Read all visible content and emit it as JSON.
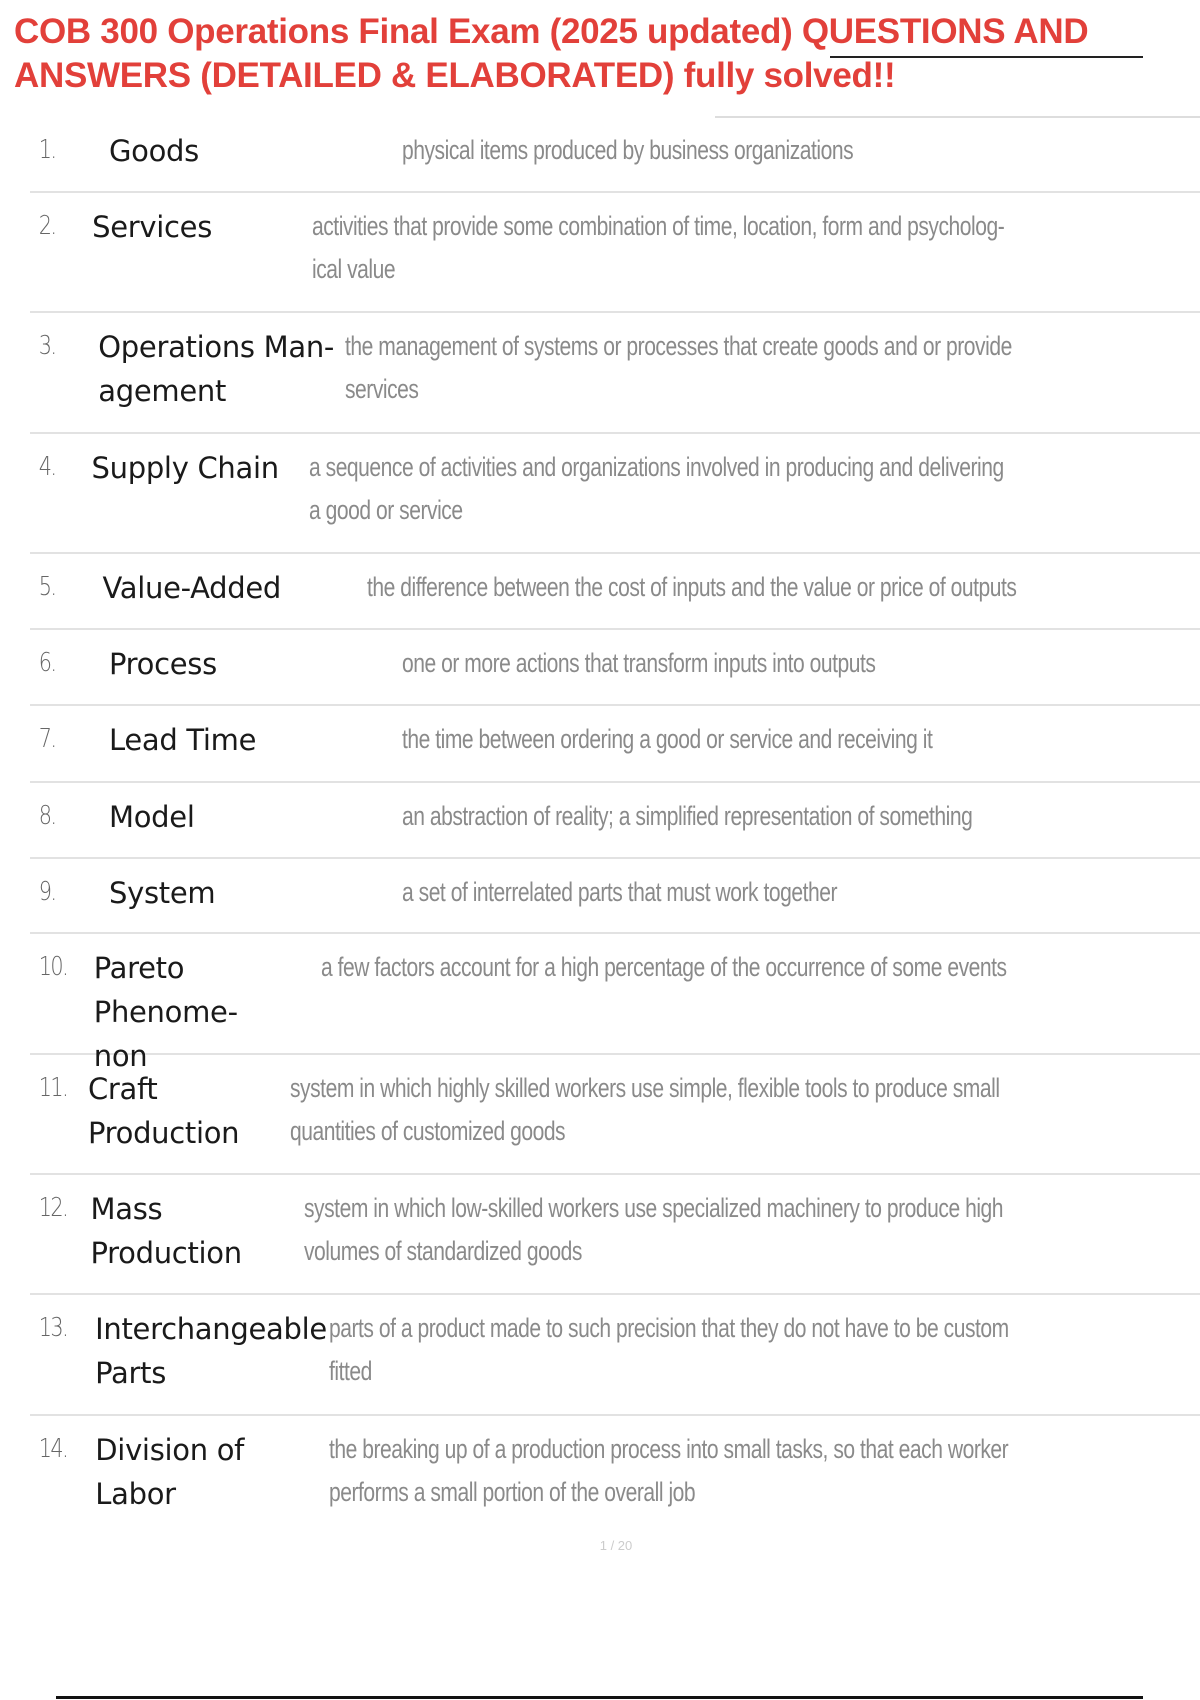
{
  "title": "COB 300 Operations Final Exam (2025 updated) QUESTIONS AND ANSWERS (DETAILED & ELABORATED) fully solved!!",
  "glossary": [
    {
      "num": "1.",
      "term": [
        "Goods"
      ],
      "def": [
        "physical items produced by business organizations"
      ]
    },
    {
      "num": "2.",
      "term": [
        "Services"
      ],
      "def": [
        "activities that provide some combination of time, location, form and psycholog-",
        "ical value"
      ]
    },
    {
      "num": "3.",
      "term": [
        "Operations Man-",
        "agement"
      ],
      "def": [
        "the management of systems or processes that create goods and or provide",
        "services"
      ]
    },
    {
      "num": "4.",
      "term": [
        "Supply Chain"
      ],
      "def": [
        "a sequence of activities and organizations involved in producing and delivering",
        "a good or service"
      ]
    },
    {
      "num": "5.",
      "term": [
        "Value-Added"
      ],
      "def": [
        "the difference between the cost of inputs and the value or price of outputs"
      ]
    },
    {
      "num": "6.",
      "term": [
        "Process"
      ],
      "def": [
        "one or more actions that transform inputs into outputs"
      ]
    },
    {
      "num": "7.",
      "term": [
        "Lead Time"
      ],
      "def": [
        "the time between ordering a good or service and receiving it"
      ]
    },
    {
      "num": "8.",
      "term": [
        "Model"
      ],
      "def": [
        "an abstraction of reality; a simplified representation of something"
      ]
    },
    {
      "num": "9.",
      "term": [
        "System"
      ],
      "def": [
        "a set of interrelated parts that must work together"
      ]
    },
    {
      "num": "10.",
      "term": [
        "Pareto Phenome-",
        "non"
      ],
      "def": [
        "a few factors account for a high percentage of the occurrence of some events"
      ]
    },
    {
      "num": "11.",
      "term": [
        "Craft Production"
      ],
      "def": [
        "system in which highly skilled workers use simple, flexible tools to produce small",
        "quantities of customized goods"
      ]
    },
    {
      "num": "12.",
      "term": [
        "Mass Production"
      ],
      "def": [
        "system in which low-skilled workers use specialized machinery to produce high",
        "volumes of standardized goods"
      ]
    },
    {
      "num": "13.",
      "term": [
        "Interchangeable",
        "Parts"
      ],
      "def": [
        "parts of a product made to such precision that they do not have to be custom",
        "fitted"
      ]
    },
    {
      "num": "14.",
      "term": [
        "Division of Labor"
      ],
      "def": [
        "the breaking up of a production process into small tasks, so that each worker",
        "performs a small portion of the overall job"
      ]
    }
  ],
  "page_number": "1 / 20"
}
